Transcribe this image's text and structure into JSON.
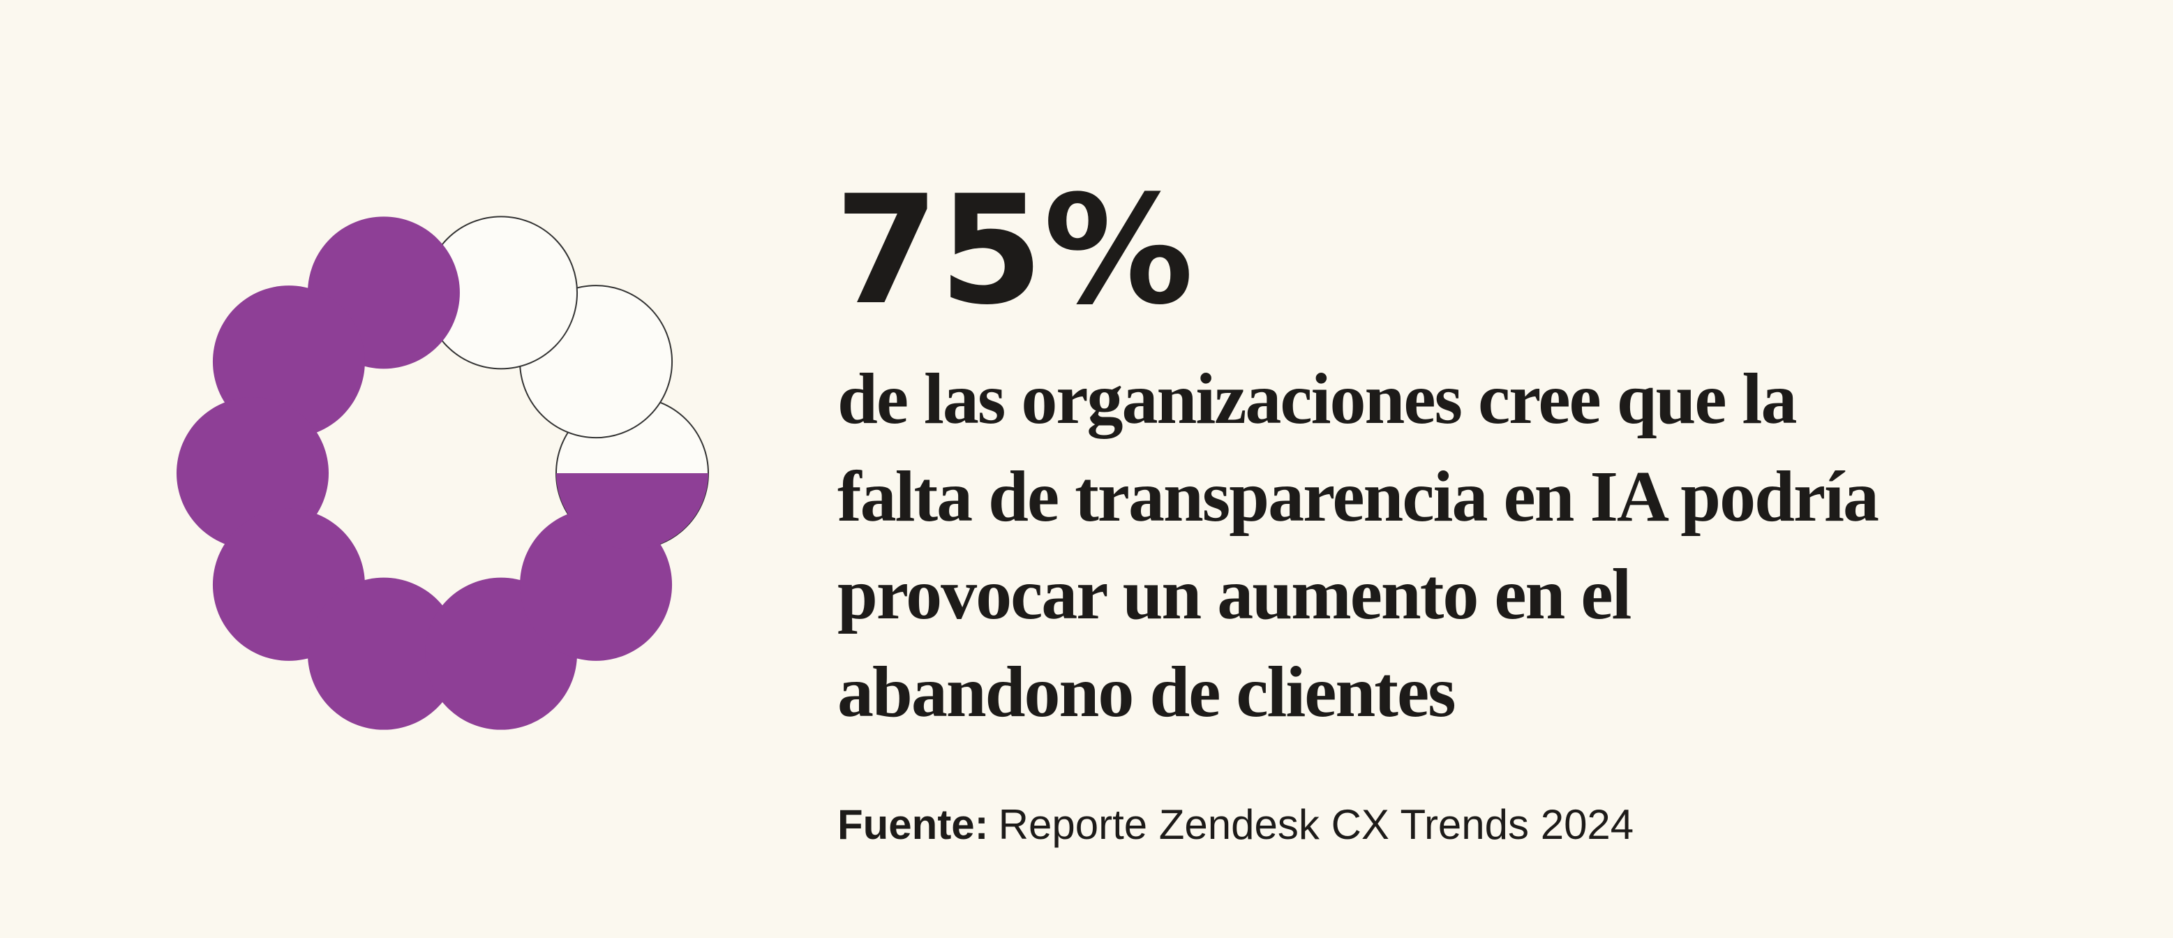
{
  "stat": {
    "value": 75,
    "label": "75%"
  },
  "description": [
    "de las organizaciones cree que la",
    "falta de transparencia en IA podría",
    "provocar un aumento en el",
    "abandono de clientes"
  ],
  "source": {
    "label": "Fuente:",
    "text": "Reporte Zendesk CX Trends 2024"
  }
}
